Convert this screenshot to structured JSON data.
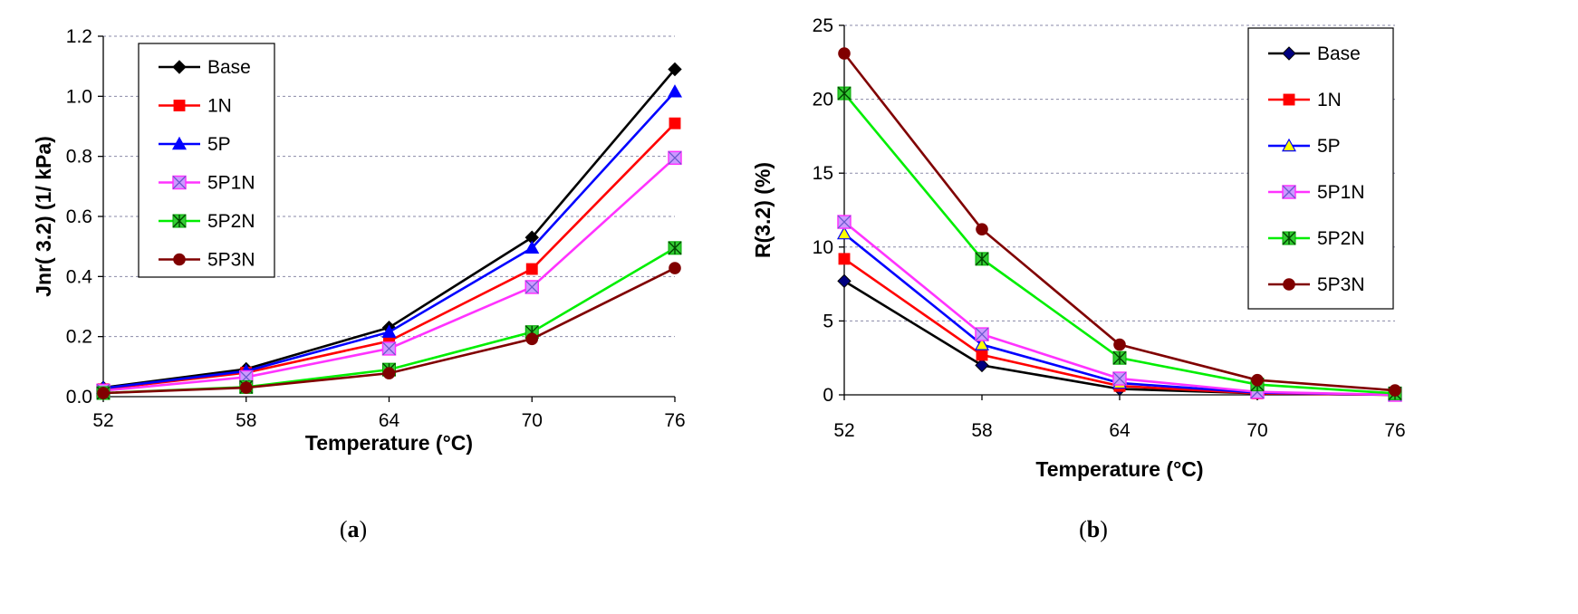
{
  "chart_data": [
    {
      "type": "line",
      "panel_label": "a",
      "xlabel": "Temperature (°C)",
      "ylabel": "Jnr( 3.2) (1/ kPa)",
      "x": [
        52,
        58,
        64,
        70,
        76
      ],
      "ylim": [
        0,
        1.2
      ],
      "yticks": [
        "0.0",
        "0.2",
        "0.4",
        "0.6",
        "0.8",
        "1.0",
        "1.2"
      ],
      "grid": "horizontal dashed",
      "legend_position": "top-left",
      "series": [
        {
          "name": "Base",
          "color": "#000000",
          "marker": "diamond",
          "marker_fill": "#000000",
          "values": [
            0.03,
            0.092,
            0.23,
            0.53,
            1.09
          ]
        },
        {
          "name": "1N",
          "color": "#ff0000",
          "marker": "square",
          "marker_fill": "#ff0000",
          "values": [
            0.025,
            0.08,
            0.185,
            0.425,
            0.91
          ]
        },
        {
          "name": "5P",
          "color": "#0000ff",
          "marker": "triangle",
          "marker_fill": "#0000ff",
          "values": [
            0.028,
            0.085,
            0.215,
            0.495,
            1.015
          ]
        },
        {
          "name": "5P1N",
          "color": "#ff33ff",
          "marker": "xsquare",
          "marker_fill": "#cc99ff",
          "values": [
            0.02,
            0.065,
            0.16,
            0.365,
            0.795
          ]
        },
        {
          "name": "5P2N",
          "color": "#00ee00",
          "marker": "asterisk",
          "marker_fill": "#33cc33",
          "values": [
            0.012,
            0.032,
            0.09,
            0.215,
            0.495
          ]
        },
        {
          "name": "5P3N",
          "color": "#800000",
          "marker": "circle",
          "marker_fill": "#800000",
          "values": [
            0.012,
            0.03,
            0.078,
            0.192,
            0.428
          ]
        }
      ]
    },
    {
      "type": "line",
      "panel_label": "b",
      "xlabel": "Temperature (°C)",
      "ylabel": "R(3.2) (%)",
      "x": [
        52,
        58,
        64,
        70,
        76
      ],
      "ylim": [
        0,
        25
      ],
      "yticks": [
        "0",
        "5",
        "10",
        "15",
        "20",
        "25"
      ],
      "grid": "horizontal dashed",
      "legend_position": "top-right",
      "series": [
        {
          "name": "Base",
          "color": "#000000",
          "marker": "diamond",
          "marker_fill": "#000080",
          "values": [
            7.7,
            2.0,
            0.4,
            0.1,
            0.0
          ]
        },
        {
          "name": "1N",
          "color": "#ff0000",
          "marker": "square",
          "marker_fill": "#ff0000",
          "values": [
            9.2,
            2.7,
            0.6,
            0.1,
            0.0
          ]
        },
        {
          "name": "5P",
          "color": "#0000ff",
          "marker": "triangle",
          "marker_fill": "#ffff00",
          "values": [
            10.9,
            3.4,
            0.8,
            0.15,
            0.0
          ]
        },
        {
          "name": "5P1N",
          "color": "#ff33ff",
          "marker": "xsquare",
          "marker_fill": "#cc99ff",
          "values": [
            11.7,
            4.1,
            1.1,
            0.2,
            0.0
          ]
        },
        {
          "name": "5P2N",
          "color": "#00ee00",
          "marker": "asterisk",
          "marker_fill": "#33cc33",
          "values": [
            20.4,
            9.2,
            2.5,
            0.7,
            0.1
          ]
        },
        {
          "name": "5P3N",
          "color": "#800000",
          "marker": "circle",
          "marker_fill": "#800000",
          "values": [
            23.1,
            11.2,
            3.4,
            1.0,
            0.3
          ]
        }
      ]
    }
  ]
}
